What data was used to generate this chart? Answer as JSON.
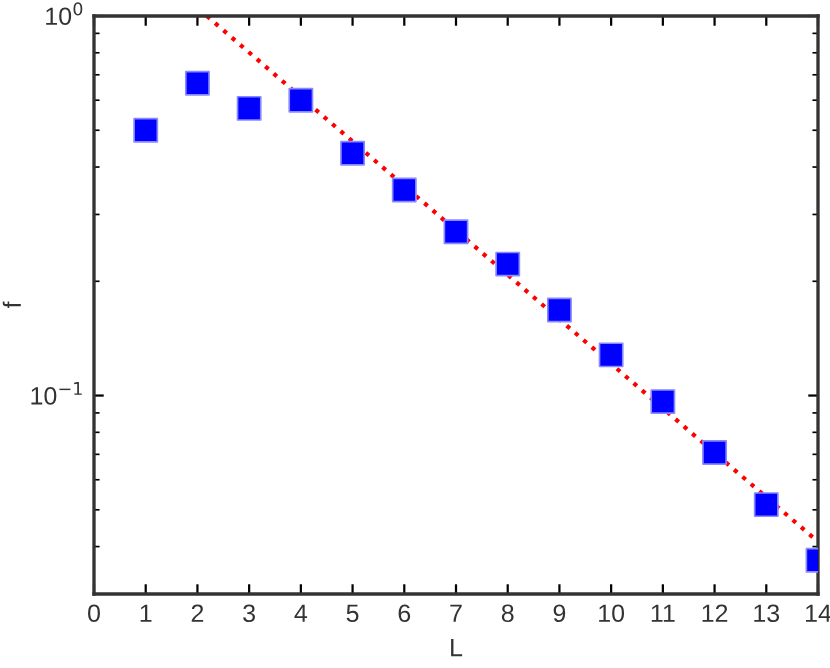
{
  "chart_data": {
    "type": "scatter",
    "xlabel": "L",
    "ylabel": "f",
    "log": "y",
    "xlim": [
      0,
      14
    ],
    "xticks": [
      0,
      1,
      2,
      3,
      4,
      5,
      6,
      7,
      8,
      9,
      10,
      11,
      12,
      13,
      14
    ],
    "ylim": [
      0.03,
      1
    ],
    "yticks": [
      {
        "value": 0.1,
        "label": "10$^{−1}$"
      },
      {
        "value": 1,
        "label": "10$^{0}$"
      }
    ],
    "grid": false,
    "legend": false,
    "series": [
      {
        "color": "#0000ff",
        "marker": "square",
        "x": [
          1,
          2,
          3,
          4,
          5,
          6,
          7,
          8,
          9,
          10,
          11,
          12,
          13,
          14
        ],
        "values": [
          0.5,
          0.665,
          0.571,
          0.6,
          0.435,
          0.348,
          0.27,
          0.222,
          0.168,
          0.128,
          0.0964,
          0.0708,
          0.0516,
          0.0368
        ]
      },
      {
        "type": "line",
        "color": "#ff0000",
        "marker": "none",
        "line_style": "dotted",
        "x": [
          2.18,
          14
        ],
        "values": [
          1,
          0.0412
        ]
      }
    ]
  }
}
